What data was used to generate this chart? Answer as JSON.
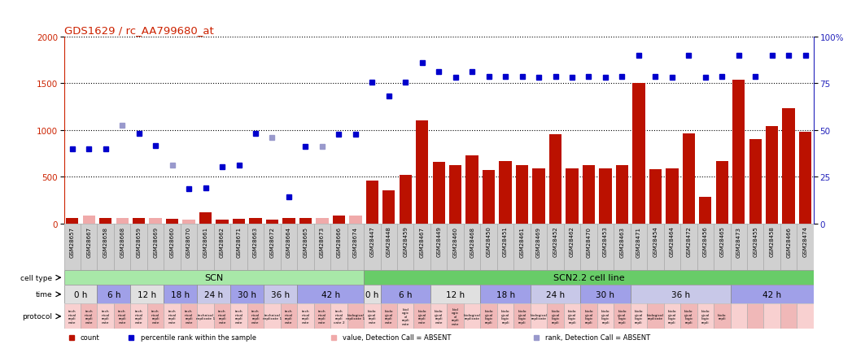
{
  "title": "GDS1629 / rc_AA799680_at",
  "samples": [
    "GSM28657",
    "GSM28667",
    "GSM28658",
    "GSM28668",
    "GSM28659",
    "GSM28669",
    "GSM28660",
    "GSM28670",
    "GSM28661",
    "GSM28662",
    "GSM28671",
    "GSM28663",
    "GSM28672",
    "GSM28664",
    "GSM28665",
    "GSM28673",
    "GSM28666",
    "GSM28674",
    "GSM28447",
    "GSM28448",
    "GSM28459",
    "GSM28467",
    "GSM28449",
    "GSM28460",
    "GSM28468",
    "GSM28450",
    "GSM28451",
    "GSM28461",
    "GSM28469",
    "GSM28452",
    "GSM28462",
    "GSM28470",
    "GSM28453",
    "GSM28463",
    "GSM28471",
    "GSM28454",
    "GSM28464",
    "GSM28472",
    "GSM28456",
    "GSM28465",
    "GSM28473",
    "GSM28455",
    "GSM28458",
    "GSM28466",
    "GSM28474"
  ],
  "count_values": [
    55,
    80,
    55,
    60,
    55,
    55,
    50,
    45,
    120,
    40,
    50,
    55,
    40,
    60,
    55,
    55,
    80,
    80,
    460,
    350,
    520,
    1100,
    660,
    620,
    730,
    570,
    670,
    620,
    590,
    950,
    590,
    620,
    590,
    620,
    1500,
    580,
    590,
    960,
    280,
    670,
    1540,
    900,
    1040,
    1230,
    980
  ],
  "count_absent": [
    false,
    true,
    false,
    true,
    false,
    true,
    false,
    true,
    false,
    false,
    false,
    false,
    false,
    false,
    false,
    true,
    false,
    true,
    false,
    false,
    false,
    false,
    false,
    false,
    false,
    false,
    false,
    false,
    false,
    false,
    false,
    false,
    false,
    false,
    false,
    false,
    false,
    false,
    false,
    false,
    false,
    false,
    false,
    false,
    false
  ],
  "rank_values": [
    800,
    800,
    800,
    1050,
    960,
    830,
    620,
    370,
    380,
    610,
    620,
    960,
    920,
    280,
    820,
    820,
    950,
    950,
    1510,
    1360,
    1510,
    1720,
    1620,
    1560,
    1620,
    1570,
    1570,
    1570,
    1560,
    1570,
    1560,
    1570,
    1560,
    1570,
    1800,
    1570,
    1560,
    1800,
    1560,
    1570,
    1800,
    1570,
    1800,
    1800,
    1800
  ],
  "rank_absent": [
    false,
    false,
    false,
    true,
    false,
    false,
    true,
    false,
    false,
    false,
    false,
    false,
    true,
    false,
    false,
    true,
    false,
    false,
    false,
    false,
    false,
    false,
    false,
    false,
    false,
    false,
    false,
    false,
    false,
    false,
    false,
    false,
    false,
    false,
    false,
    false,
    false,
    false,
    false,
    false,
    false,
    false,
    false,
    false,
    false
  ],
  "cell_type_groups": [
    {
      "label": "SCN",
      "start": 0,
      "end": 18,
      "color": "#a8e8a8"
    },
    {
      "label": "SCN2.2 cell line",
      "start": 18,
      "end": 45,
      "color": "#68cc68"
    }
  ],
  "time_groups": [
    {
      "label": "0 h",
      "start": 0,
      "end": 2,
      "color": "#e0e0e0"
    },
    {
      "label": "6 h",
      "start": 2,
      "end": 4,
      "color": "#a0a0e8"
    },
    {
      "label": "12 h",
      "start": 4,
      "end": 6,
      "color": "#e0e0e0"
    },
    {
      "label": "18 h",
      "start": 6,
      "end": 8,
      "color": "#a0a0e8"
    },
    {
      "label": "24 h",
      "start": 8,
      "end": 10,
      "color": "#c8c8e8"
    },
    {
      "label": "30 h",
      "start": 10,
      "end": 12,
      "color": "#a0a0e8"
    },
    {
      "label": "36 h",
      "start": 12,
      "end": 14,
      "color": "#c8c8e8"
    },
    {
      "label": "42 h",
      "start": 14,
      "end": 18,
      "color": "#a0a0e8"
    },
    {
      "label": "0 h",
      "start": 18,
      "end": 19,
      "color": "#e0e0e0"
    },
    {
      "label": "6 h",
      "start": 19,
      "end": 22,
      "color": "#a0a0e8"
    },
    {
      "label": "12 h",
      "start": 22,
      "end": 25,
      "color": "#e0e0e0"
    },
    {
      "label": "18 h",
      "start": 25,
      "end": 28,
      "color": "#a0a0e8"
    },
    {
      "label": "24 h",
      "start": 28,
      "end": 31,
      "color": "#c8c8e8"
    },
    {
      "label": "30 h",
      "start": 31,
      "end": 34,
      "color": "#a0a0e8"
    },
    {
      "label": "36 h",
      "start": 34,
      "end": 40,
      "color": "#c8c8e8"
    },
    {
      "label": "42 h",
      "start": 40,
      "end": 45,
      "color": "#a0a0e8"
    }
  ],
  "bar_color": "#bb1100",
  "bar_absent_color": "#f0aaaa",
  "dot_color": "#0000cc",
  "dot_absent_color": "#9999cc",
  "ylim_left": [
    0,
    2000
  ],
  "ylim_right": [
    0,
    100
  ],
  "yticks_left": [
    0,
    500,
    1000,
    1500,
    2000
  ],
  "yticks_right_vals": [
    0,
    25,
    50,
    75,
    100
  ],
  "yticks_right_labels": [
    "0",
    "25",
    "50",
    "75",
    "100%"
  ],
  "background_color": "#ffffff",
  "title_color": "#cc2200",
  "left_axis_color": "#cc2200",
  "right_axis_color": "#2222bb",
  "xlabel_bg": "#d0d0d0"
}
